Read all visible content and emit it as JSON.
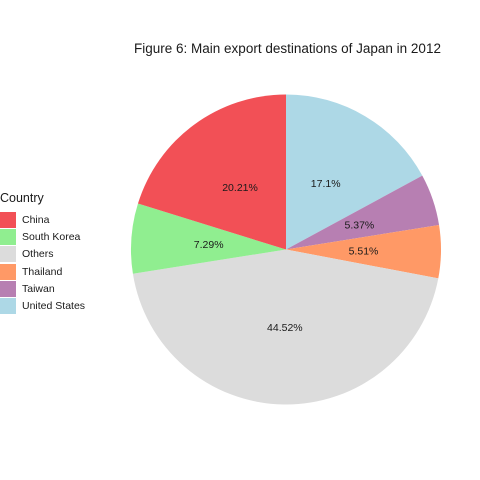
{
  "chart_data": {
    "type": "pie",
    "title": "Figure 6: Main export destinations of Japan in 2012",
    "legend_title": "Country",
    "legend_position": "left",
    "slices": [
      {
        "name": "United States",
        "value": 17.1,
        "label": "17.1%",
        "color": "#ADD8E6"
      },
      {
        "name": "Taiwan",
        "value": 5.37,
        "label": "5.37%",
        "color": "#B77FB2"
      },
      {
        "name": "Thailand",
        "value": 5.51,
        "label": "5.51%",
        "color": "#FF9966"
      },
      {
        "name": "Others",
        "value": 44.52,
        "label": "44.52%",
        "color": "#DCDCDC"
      },
      {
        "name": "South Korea",
        "value": 7.29,
        "label": "7.29%",
        "color": "#90EE90"
      },
      {
        "name": "China",
        "value": 20.21,
        "label": "20.21%",
        "color": "#F25056"
      }
    ],
    "legend_order": [
      "China",
      "South Korea",
      "Others",
      "Thailand",
      "Taiwan",
      "United States"
    ]
  }
}
